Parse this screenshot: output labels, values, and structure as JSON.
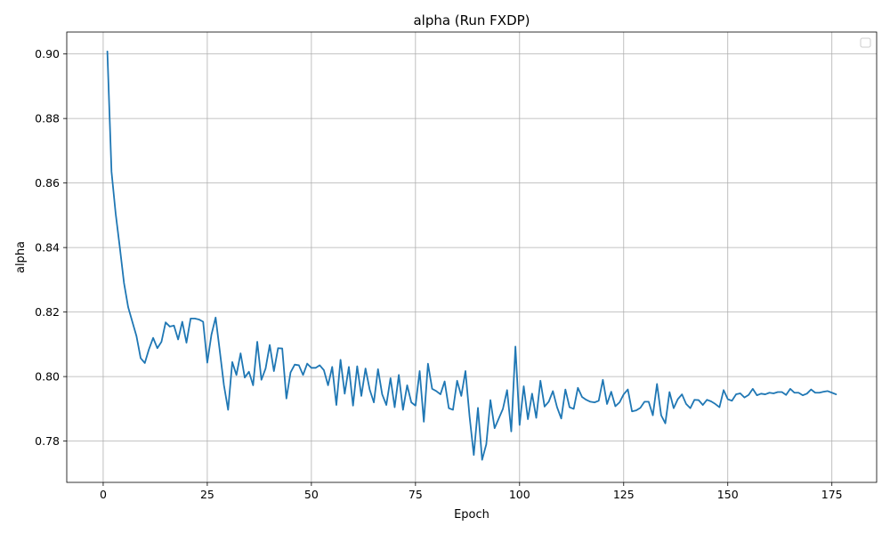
{
  "chart_data": {
    "type": "line",
    "title": "alpha (Run FXDP)",
    "xlabel": "Epoch",
    "ylabel": "alpha",
    "xlim": [
      -8.75,
      185.75
    ],
    "ylim": [
      0.7672,
      0.9068
    ],
    "xticks": [
      0,
      25,
      50,
      75,
      100,
      125,
      150,
      175
    ],
    "yticks": [
      0.78,
      0.8,
      0.82,
      0.84,
      0.86,
      0.88,
      0.9
    ],
    "ytick_labels": [
      "0.78",
      "0.80",
      "0.82",
      "0.84",
      "0.86",
      "0.88",
      "0.90"
    ],
    "grid": true,
    "legend": "top-right, empty",
    "series_color": "#1f77b4",
    "series": [
      {
        "x_start": 1,
        "x_step": 1,
        "values": [
          0.9008,
          0.8635,
          0.8505,
          0.84,
          0.829,
          0.8215,
          0.817,
          0.8125,
          0.8057,
          0.8042,
          0.8085,
          0.812,
          0.8088,
          0.8108,
          0.8168,
          0.8155,
          0.8158,
          0.8115,
          0.817,
          0.8105,
          0.818,
          0.818,
          0.8177,
          0.817,
          0.8043,
          0.813,
          0.8183,
          0.808,
          0.7973,
          0.7897,
          0.8045,
          0.8005,
          0.8072,
          0.7997,
          0.8015,
          0.7973,
          0.8108,
          0.799,
          0.8025,
          0.8098,
          0.8017,
          0.8088,
          0.8087,
          0.7932,
          0.8013,
          0.8037,
          0.8035,
          0.8005,
          0.804,
          0.8027,
          0.8027,
          0.8035,
          0.802,
          0.7973,
          0.803,
          0.7912,
          0.8052,
          0.7947,
          0.803,
          0.791,
          0.8032,
          0.794,
          0.8025,
          0.796,
          0.792,
          0.8023,
          0.7945,
          0.7912,
          0.7995,
          0.7905,
          0.8005,
          0.7897,
          0.7973,
          0.792,
          0.791,
          0.8017,
          0.786,
          0.804,
          0.7962,
          0.7955,
          0.7945,
          0.7985,
          0.7902,
          0.7897,
          0.7987,
          0.794,
          0.8017,
          0.7875,
          0.7757,
          0.7903,
          0.7742,
          0.779,
          0.7927,
          0.784,
          0.787,
          0.79,
          0.7958,
          0.783,
          0.8093,
          0.785,
          0.797,
          0.7868,
          0.7947,
          0.7872,
          0.7987,
          0.7907,
          0.7922,
          0.7955,
          0.7905,
          0.787,
          0.796,
          0.7905,
          0.79,
          0.7965,
          0.7937,
          0.7928,
          0.7922,
          0.792,
          0.7925,
          0.799,
          0.7915,
          0.7953,
          0.7908,
          0.792,
          0.7945,
          0.796,
          0.7892,
          0.7895,
          0.7903,
          0.7922,
          0.7922,
          0.788,
          0.7977,
          0.788,
          0.7855,
          0.7952,
          0.7902,
          0.793,
          0.7945,
          0.7915,
          0.7902,
          0.7928,
          0.7927,
          0.7912,
          0.7928,
          0.7923,
          0.7915,
          0.7905,
          0.7958,
          0.793,
          0.7925,
          0.7945,
          0.7948,
          0.7935,
          0.7943,
          0.7962,
          0.7942,
          0.7947,
          0.7945,
          0.795,
          0.7948,
          0.7952,
          0.7952,
          0.7943,
          0.7962,
          0.795,
          0.795,
          0.7942,
          0.7947,
          0.796,
          0.795,
          0.795,
          0.7953,
          0.7955,
          0.795,
          0.7945
        ]
      }
    ]
  }
}
